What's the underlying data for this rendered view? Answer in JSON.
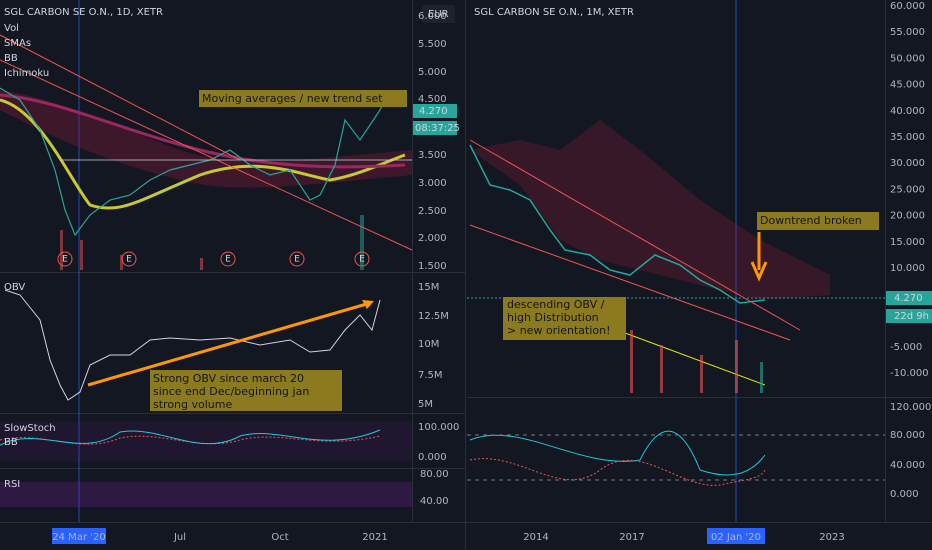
{
  "left": {
    "title": "SGL CARBON SE O.N., 1D, XETR",
    "indicators": [
      "Vol",
      "SMAs",
      "BB",
      "Ichimoku"
    ],
    "currency": "EUR",
    "price_axis": [
      "6.000",
      "5.500",
      "5.000",
      "4.500",
      "3.500",
      "3.000",
      "2.500",
      "2.000",
      "1.500"
    ],
    "price_tag": "4.270",
    "countdown": "08:37:25",
    "annotation": "Moving averages / new trend set",
    "earnings": [
      "E",
      "E",
      "E",
      "E",
      "E"
    ],
    "obv": {
      "label": "OBV",
      "axis": [
        "15M",
        "12.5M",
        "10M",
        "7.5M",
        "5M"
      ],
      "annotation": [
        "Strong OBV since march 20",
        "since end Dec/beginning jan",
        "strong volume"
      ]
    },
    "stoch": {
      "labels": [
        "SlowStoch",
        "BB"
      ],
      "axis": [
        "100.000",
        "0.000"
      ]
    },
    "rsi": {
      "label": "RSI",
      "axis": [
        "80.00",
        "40.00"
      ]
    },
    "time_axis": [
      "24 Mar '20",
      "Jul",
      "Oct",
      "2021"
    ]
  },
  "right": {
    "title": "SGL CARBON SE O.N., 1M, XETR",
    "price_axis": [
      "60.000",
      "55.000",
      "50.000",
      "45.000",
      "40.000",
      "35.000",
      "30.000",
      "25.000",
      "20.000",
      "15.000",
      "10.000"
    ],
    "price_axis_lower": [
      "-5.000",
      "-10.000"
    ],
    "price_tag": "4.270",
    "countdown": "22d 9h",
    "annotation_top": "Downtrend broken",
    "annotation_obv": [
      "descending OBV /",
      "high Distribution",
      "> new orientation!"
    ],
    "osc_axis": [
      "120.000",
      "80.000",
      "40.000",
      "0.000"
    ],
    "time_axis": [
      "2014",
      "2017",
      "02 Jan '20",
      "2023"
    ]
  }
}
